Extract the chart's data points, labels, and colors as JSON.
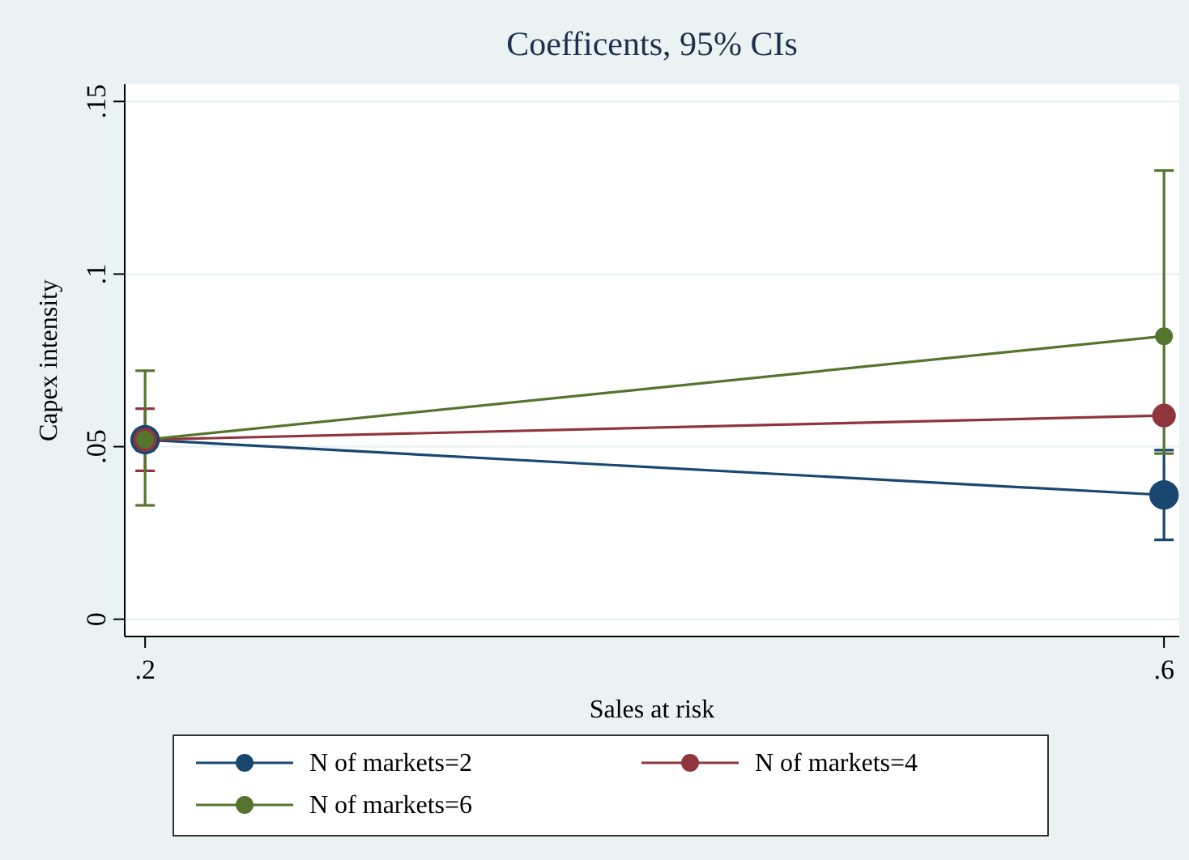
{
  "chart_data": {
    "type": "line",
    "title": "Coefficents, 95% CIs",
    "xlabel": "Sales at risk",
    "ylabel": "Capex intensity",
    "x": [
      0.2,
      0.6
    ],
    "xlim": [
      0.192,
      0.606
    ],
    "xticks": [
      {
        "value": 0.2,
        "label": ".2"
      },
      {
        "value": 0.6,
        "label": ".6"
      }
    ],
    "ylim": [
      -0.005,
      0.155
    ],
    "yticks": [
      0,
      {
        "value": 0.05,
        "label": ".05"
      },
      {
        "value": 0.1,
        "label": ".1"
      },
      {
        "value": 0.15,
        "label": ".15"
      }
    ],
    "grid": "y",
    "legend": "bottom",
    "marker": "circle",
    "line_style": "solid",
    "series": [
      {
        "name": "N of markets=2",
        "color": "#1a476f",
        "values": [
          0.052,
          0.036
        ],
        "errors": [
          [
            0.049,
            0.055
          ],
          [
            0.023,
            0.049
          ]
        ]
      },
      {
        "name": "N of markets=4",
        "color": "#90353b",
        "values": [
          0.052,
          0.059
        ],
        "errors": [
          [
            0.043,
            0.061
          ],
          null
        ]
      },
      {
        "name": "N of markets=6",
        "color": "#55752f",
        "values": [
          0.052,
          0.082
        ],
        "errors": [
          [
            0.033,
            0.072
          ],
          [
            0.048,
            0.13
          ]
        ]
      }
    ]
  }
}
